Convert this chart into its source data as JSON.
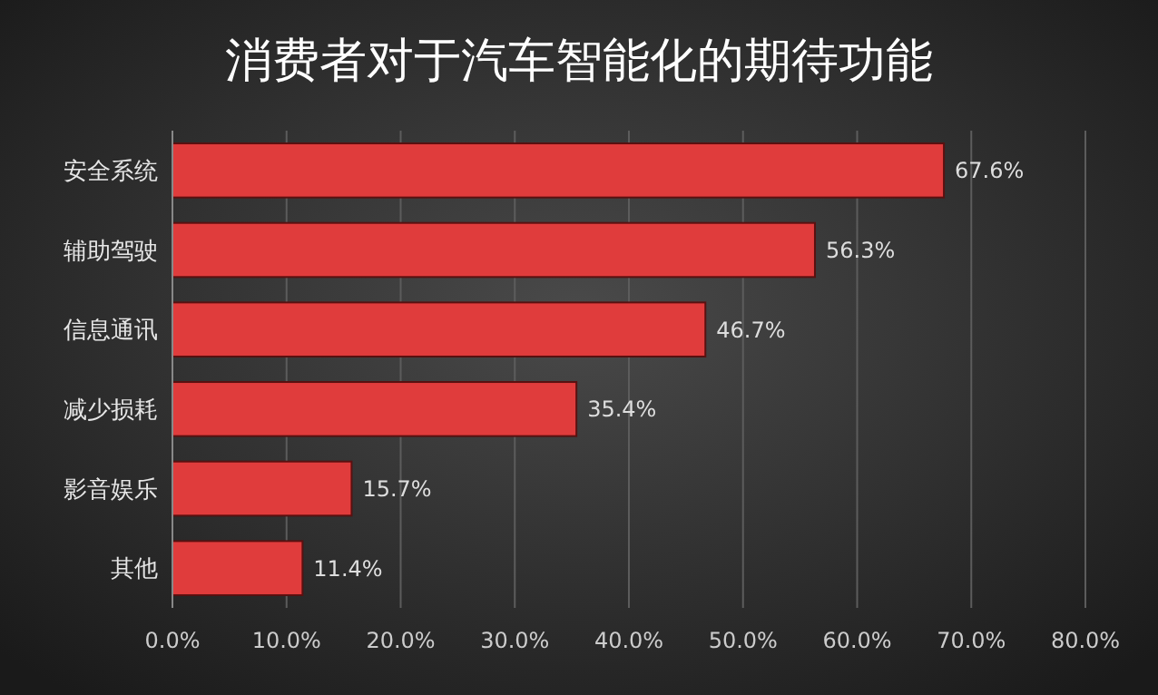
{
  "chart_data": {
    "type": "bar",
    "orientation": "horizontal",
    "title": "消费者对于汽车智能化的期待功能",
    "categories": [
      "安全系统",
      "辅助驾驶",
      "信息通讯",
      "减少损耗",
      "影音娱乐",
      "其他"
    ],
    "values": [
      67.6,
      56.3,
      46.7,
      35.4,
      15.7,
      11.4
    ],
    "value_labels": [
      "67.6%",
      "56.3%",
      "46.7%",
      "35.4%",
      "15.7%",
      "11.4%"
    ],
    "color": "#e03c3c",
    "xlim": [
      0,
      80
    ],
    "xticks": [
      {
        "value": 0,
        "label": "0.0%"
      },
      {
        "value": 10,
        "label": "10.0%"
      },
      {
        "value": 20,
        "label": "20.0%"
      },
      {
        "value": 30,
        "label": "30.0%"
      },
      {
        "value": 40,
        "label": "40.0%"
      },
      {
        "value": 50,
        "label": "50.0%"
      },
      {
        "value": 60,
        "label": "60.0%"
      },
      {
        "value": 70,
        "label": "70.0%"
      },
      {
        "value": 80,
        "label": "80.0%"
      }
    ],
    "grid": "x"
  }
}
